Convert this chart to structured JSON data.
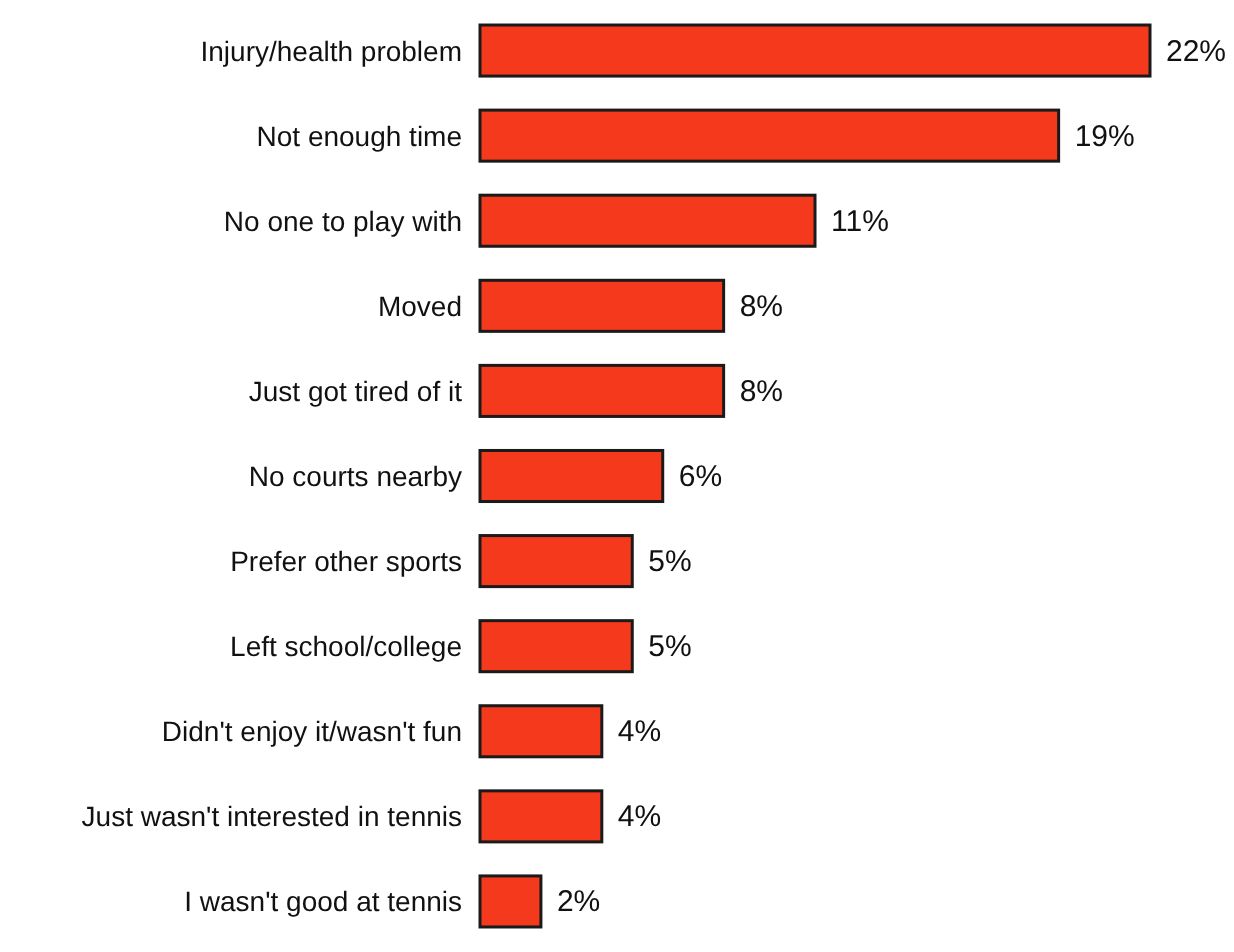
{
  "chart_data": {
    "type": "bar",
    "orientation": "horizontal",
    "categories": [
      "Injury/health problem",
      "Not enough time",
      "No one to play with",
      "Moved",
      "Just got tired of it",
      "No courts nearby",
      "Prefer other sports",
      "Left school/college",
      "Didn't enjoy it/wasn't fun",
      "Just wasn't interested in tennis",
      "I wasn't good at tennis"
    ],
    "values": [
      22,
      19,
      11,
      8,
      8,
      6,
      5,
      5,
      4,
      4,
      2
    ],
    "value_labels": [
      "22%",
      "19%",
      "11%",
      "8%",
      "8%",
      "6%",
      "5%",
      "5%",
      "4%",
      "4%",
      "2%"
    ],
    "color": "#f5391c"
  }
}
